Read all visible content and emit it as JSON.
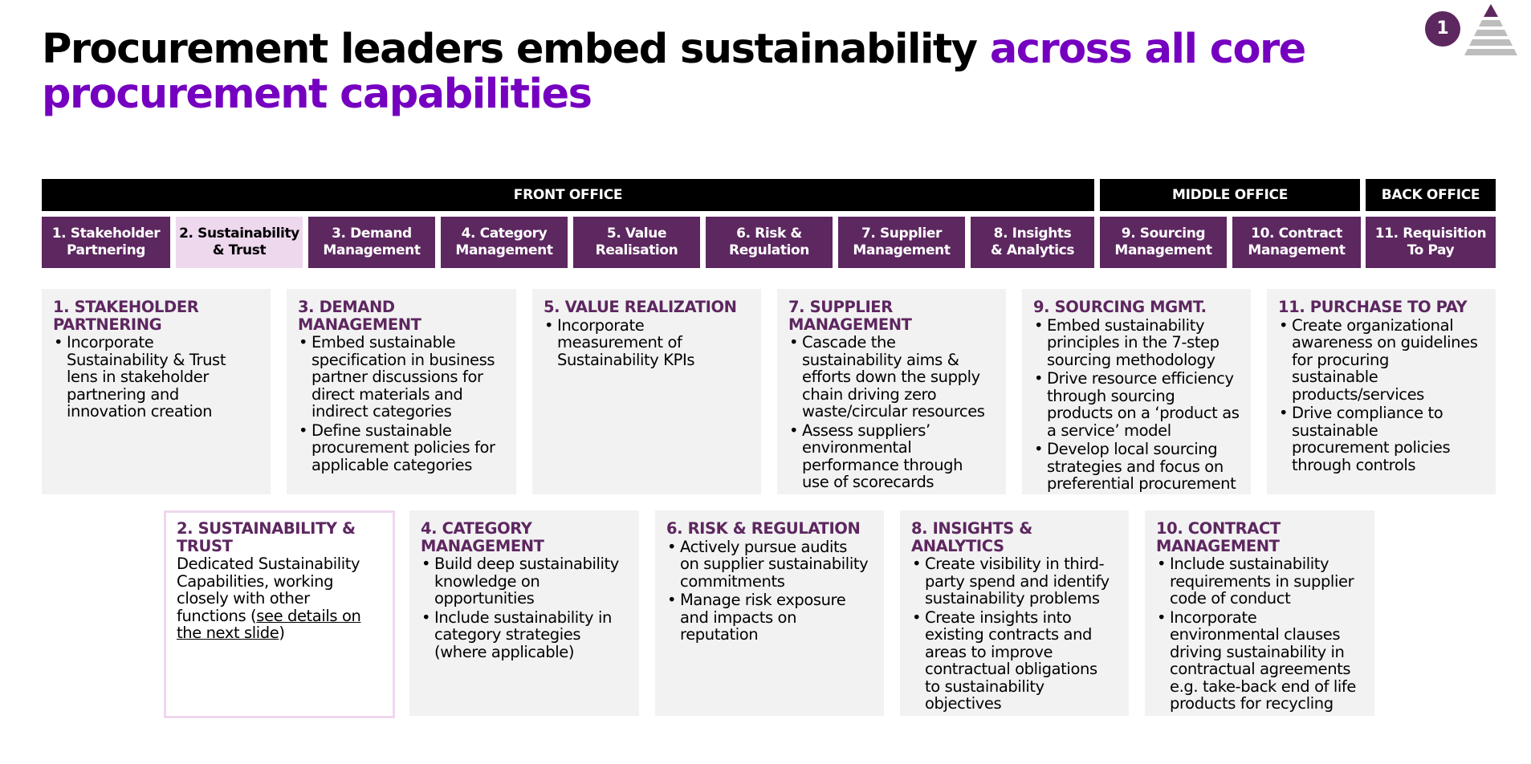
{
  "title": {
    "main": "Procurement leaders embed sustainability ",
    "accent": "across all core procurement capabilities"
  },
  "badge": {
    "number": "1"
  },
  "colors": {
    "accent": "#7500c0",
    "plum": "#5d2760",
    "active_tab": "#eed8ee",
    "card_bg": "#f2f2f2"
  },
  "offices": {
    "front": "FRONT OFFICE",
    "middle": "MIDDLE OFFICE",
    "back": "BACK OFFICE"
  },
  "tabs": [
    "1. Stakeholder\nPartnering",
    "2. Sustainability\n& Trust",
    "3. Demand\nManagement",
    "4. Category\nManagement",
    "5. Value\nRealisation",
    "6. Risk &\nRegulation",
    "7. Supplier\nManagement",
    "8. Insights\n& Analytics",
    "9. Sourcing\nManagement",
    "10. Contract\nManagement",
    "11. Requisition\nTo Pay"
  ],
  "cards": {
    "stakeholder": {
      "heading": "1. STAKEHOLDER\nPARTNERING",
      "bullets": [
        "Incorporate\nSustainability & Trust\nlens in stakeholder\npartnering and\ninnovation creation"
      ]
    },
    "demand": {
      "heading": "3. DEMAND\nMANAGEMENT",
      "bullets": [
        "Embed sustainable\nspecification in business\npartner discussions for\ndirect materials and\nindirect categories",
        "Define sustainable\nprocurement policies for\napplicable categories"
      ]
    },
    "value": {
      "heading": "5. VALUE REALIZATION",
      "bullets": [
        "Incorporate\nmeasurement of\nSustainability KPIs"
      ]
    },
    "supplier": {
      "heading": "7. SUPPLIER\nMANAGEMENT",
      "bullets": [
        "Cascade the\nsustainability aims &\nefforts down the supply\nchain driving zero\nwaste/circular resources",
        "Assess suppliers’\nenvironmental\nperformance through\nuse of scorecards"
      ]
    },
    "sourcing": {
      "heading": "9. SOURCING MGMT.",
      "bullets": [
        "Embed sustainability\nprinciples in the 7-step\nsourcing methodology",
        "Drive resource efficiency\nthrough sourcing\nproducts on a ‘product as\na service’ model",
        "Develop local sourcing\nstrategies and focus on\npreferential procurement"
      ]
    },
    "p2p": {
      "heading": "11. PURCHASE TO PAY",
      "bullets": [
        "Create organizational\nawareness on guidelines\nfor procuring\nsustainable\nproducts/services",
        "Drive compliance to\nsustainable\nprocurement policies\nthrough controls"
      ]
    },
    "sustainability": {
      "heading": "2. SUSTAINABILITY &\nTRUST",
      "text": "Dedicated Sustainability\nCapabilities, working\nclosely with other\nfunctions (",
      "link": "see details on\nthe next slide",
      "text_end": ")"
    },
    "category": {
      "heading": "4. CATEGORY\nMANAGEMENT",
      "bullets": [
        "Build deep sustainability\nknowledge on\nopportunities",
        "Include sustainability in\ncategory strategies\n(where applicable)"
      ]
    },
    "risk": {
      "heading": "6. RISK & REGULATION",
      "bullets": [
        "Actively pursue audits\non supplier sustainability\ncommitments",
        "Manage risk exposure\nand impacts on\nreputation"
      ]
    },
    "insights": {
      "heading": "8. INSIGHTS &\nANALYTICS",
      "bullets": [
        "Create visibility in third-\nparty spend and identify\nsustainability problems",
        "Create insights into\nexisting contracts and\nareas to improve\ncontractual obligations\nto sustainability\nobjectives"
      ]
    },
    "contract": {
      "heading": "10. CONTRACT\nMANAGEMENT",
      "bullets": [
        "Include sustainability\nrequirements in supplier\ncode of conduct",
        "Incorporate\nenvironmental clauses\ndriving sustainability in\ncontractual agreements\ne.g. take-back end of life\nproducts for recycling"
      ]
    }
  }
}
